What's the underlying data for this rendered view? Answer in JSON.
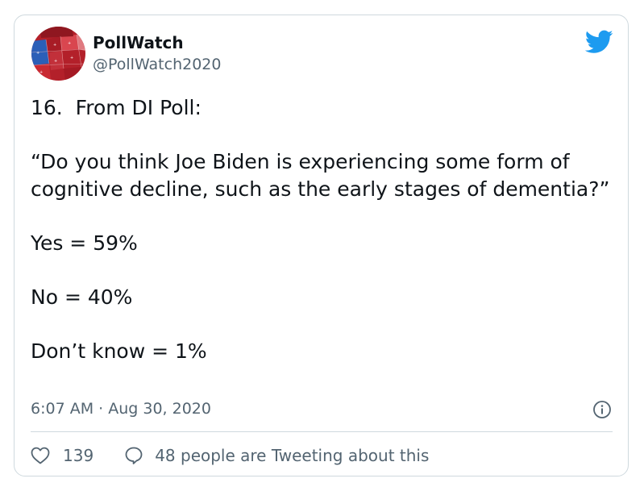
{
  "account": {
    "display_name": "PollWatch",
    "handle": "@PollWatch2020",
    "avatar_icon": "electoral-map-avatar"
  },
  "brand": {
    "icon": "twitter-bird-icon",
    "color": "#1d9bf0"
  },
  "tweet": {
    "lines": [
      "16.  From DI Poll:",
      "“Do you think Joe Biden is experiencing some form of cognitive decline, such as the early stages of dementia?”",
      "Yes = 59%",
      "No = 40%",
      "Don’t know = 1%"
    ],
    "timestamp": "6:07 AM · Aug 30, 2020"
  },
  "actions": {
    "like_count": "139",
    "reply_label": "48 people are Tweeting about this"
  },
  "colors": {
    "text": "#0f1419",
    "secondary_text": "#536471",
    "border": "#cfd9de"
  }
}
